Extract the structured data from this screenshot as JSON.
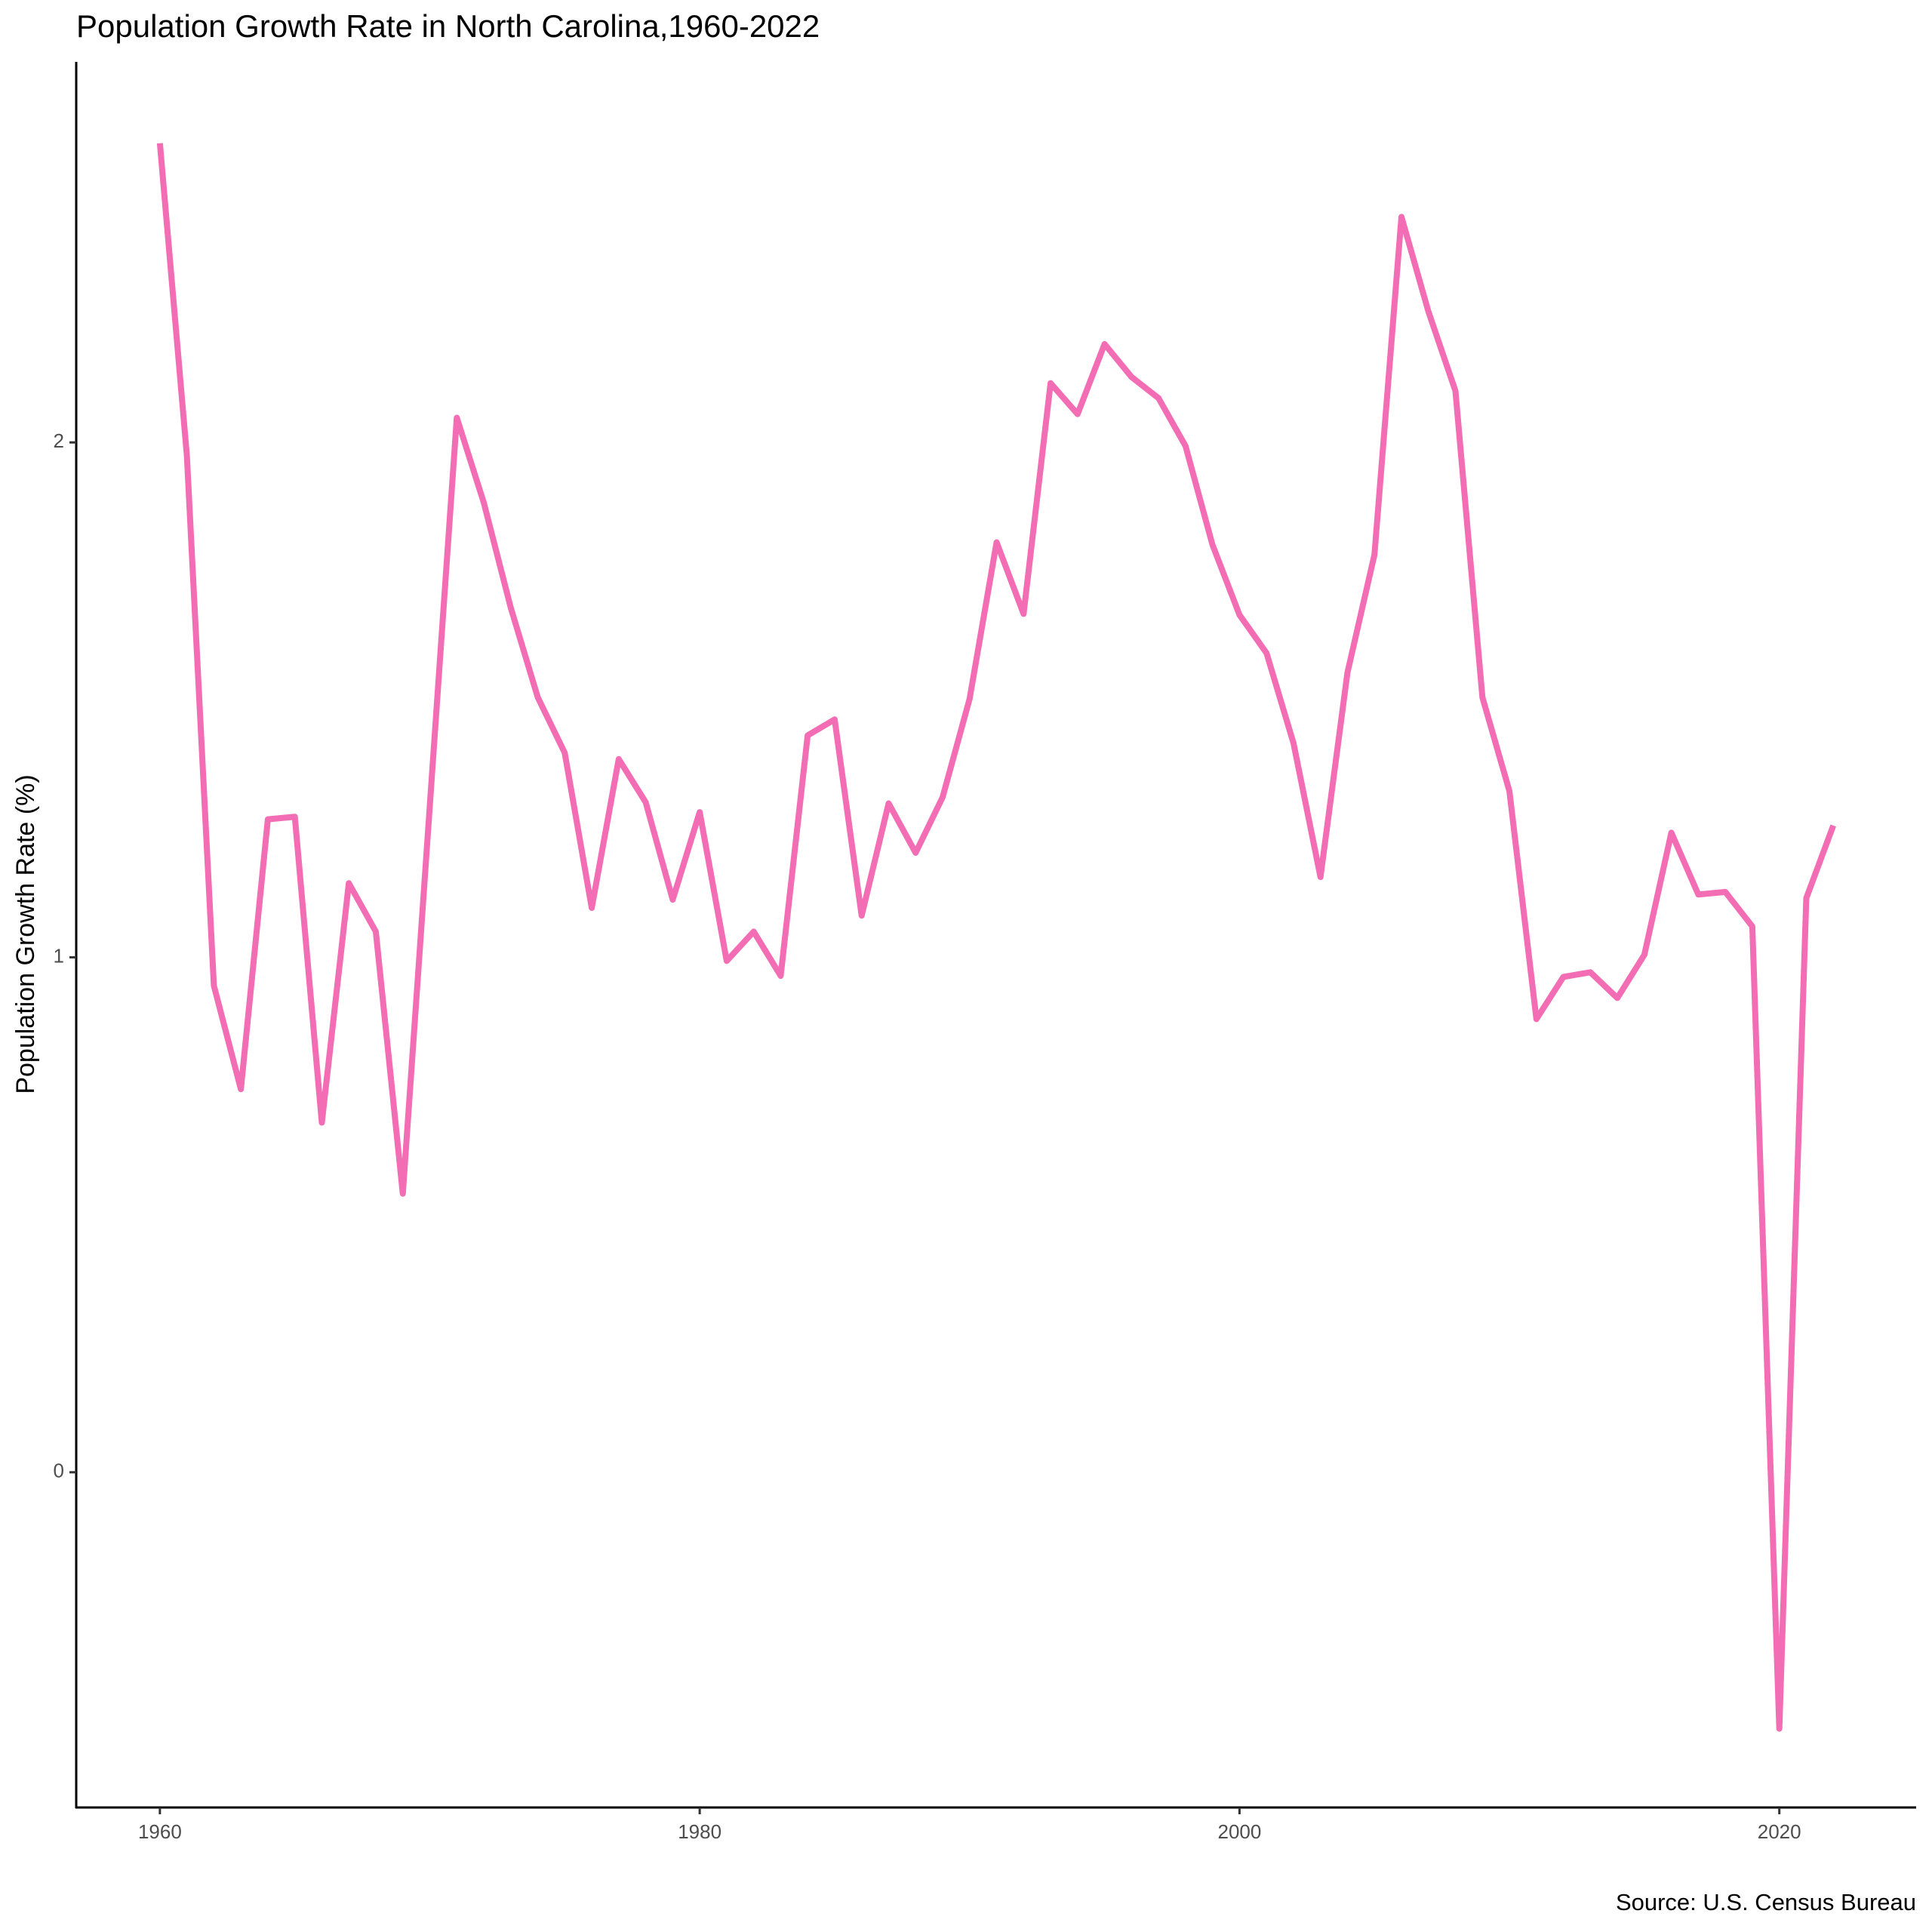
{
  "chart_data": {
    "type": "line",
    "title": "Population Growth Rate in North Carolina,1960-2022",
    "y_label": "Population Growth Rate (%)",
    "caption": "Source: U.S. Census Bureau",
    "x": [
      1960,
      1961,
      1962,
      1963,
      1964,
      1965,
      1966,
      1967,
      1968,
      1969,
      1970,
      1971,
      1972,
      1973,
      1974,
      1975,
      1976,
      1977,
      1978,
      1979,
      1980,
      1981,
      1982,
      1983,
      1984,
      1985,
      1986,
      1987,
      1988,
      1989,
      1990,
      1991,
      1992,
      1993,
      1994,
      1995,
      1996,
      1997,
      1998,
      1999,
      2000,
      2001,
      2002,
      2003,
      2004,
      2005,
      2006,
      2007,
      2008,
      2009,
      2010,
      2011,
      2012,
      2013,
      2014,
      2015,
      2016,
      2017,
      2018,
      2019,
      2020,
      2021,
      2022
    ],
    "values": [
      2.581,
      1.974,
      0.945,
      0.744,
      1.268,
      1.273,
      0.679,
      1.144,
      1.05,
      0.541,
      1.294,
      2.048,
      1.883,
      1.679,
      1.505,
      1.397,
      1.096,
      1.385,
      1.301,
      1.112,
      1.282,
      0.993,
      1.05,
      0.964,
      1.431,
      1.462,
      1.081,
      1.299,
      1.203,
      1.311,
      1.502,
      1.806,
      1.667,
      2.115,
      2.055,
      2.191,
      2.127,
      2.086,
      1.993,
      1.801,
      1.665,
      1.591,
      1.416,
      1.156,
      1.553,
      1.782,
      2.438,
      2.254,
      2.1,
      1.505,
      1.323,
      0.88,
      0.962,
      0.971,
      0.921,
      1.005,
      1.242,
      1.122,
      1.127,
      1.06,
      -0.498,
      1.115,
      1.256
    ],
    "color": "#F36DB5",
    "xlim": [
      1956.9,
      2025.07
    ],
    "xticks": [
      1960,
      1980,
      2000,
      2020
    ],
    "ylim": [
      -0.651,
      2.739
    ],
    "yticks": [
      0,
      1,
      2
    ],
    "grid": false
  }
}
